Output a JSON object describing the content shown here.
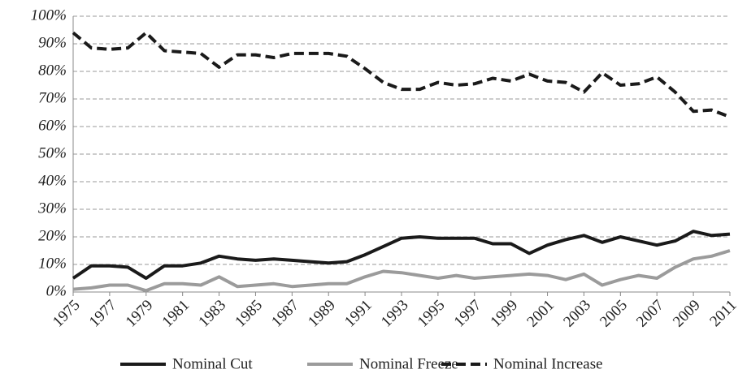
{
  "chart_data": {
    "type": "line",
    "x": [
      1975,
      1976,
      1977,
      1978,
      1979,
      1980,
      1981,
      1982,
      1983,
      1984,
      1985,
      1986,
      1987,
      1988,
      1989,
      1990,
      1991,
      1992,
      1993,
      1994,
      1995,
      1996,
      1997,
      1998,
      1999,
      2000,
      2001,
      2002,
      2003,
      2004,
      2005,
      2006,
      2007,
      2008,
      2009,
      2010,
      2011
    ],
    "series": [
      {
        "name": "Nominal Cut",
        "color": "#1a1a1a",
        "dashed": false,
        "values": [
          5,
          9.5,
          9.5,
          9,
          5,
          9.5,
          9.5,
          10.5,
          13,
          12,
          11.5,
          12,
          11.5,
          11,
          10.5,
          11,
          13.5,
          16.5,
          19.5,
          20,
          19.5,
          19.5,
          19.5,
          17.5,
          17.5,
          14,
          17,
          19,
          20.5,
          18,
          20,
          18.5,
          17,
          18.5,
          22,
          20.5,
          21
        ]
      },
      {
        "name": "Nominal Freeze",
        "color": "#9b9b9b",
        "dashed": false,
        "values": [
          1,
          1.5,
          2.5,
          2.5,
          0.5,
          3,
          3,
          2.5,
          5.5,
          2,
          2.5,
          3,
          2,
          2.5,
          3,
          3,
          5.5,
          7.5,
          7,
          6,
          5,
          6,
          5,
          5.5,
          6,
          6.5,
          6,
          4.5,
          6.5,
          2.5,
          4.5,
          6,
          5,
          9,
          12,
          13,
          15
        ]
      },
      {
        "name": "Nominal Increase",
        "color": "#1a1a1a",
        "dashed": true,
        "values": [
          94,
          88.5,
          88,
          88.5,
          94,
          87.5,
          87,
          86.5,
          81.5,
          86,
          86,
          85,
          86.5,
          86.5,
          86.5,
          85.5,
          81,
          76,
          73.5,
          73.5,
          76,
          75,
          75.5,
          77.5,
          76.5,
          79,
          76.5,
          76,
          72.5,
          79.5,
          75,
          75.5,
          78,
          72.5,
          65.5,
          66,
          63.5
        ]
      }
    ],
    "xlim": [
      1975,
      2011
    ],
    "xticks": [
      1975,
      1977,
      1979,
      1981,
      1983,
      1985,
      1987,
      1989,
      1991,
      1993,
      1995,
      1997,
      1999,
      2001,
      2003,
      2005,
      2007,
      2009,
      2011
    ],
    "ylim": [
      0,
      100
    ],
    "yticks": [
      {
        "value": 0,
        "label": "0%"
      },
      {
        "value": 10,
        "label": "10%"
      },
      {
        "value": 20,
        "label": "20%"
      },
      {
        "value": 30,
        "label": "30%"
      },
      {
        "value": 40,
        "label": "40%"
      },
      {
        "value": 50,
        "label": "50%"
      },
      {
        "value": 60,
        "label": "60%"
      },
      {
        "value": 70,
        "label": "70%"
      },
      {
        "value": 80,
        "label": "80%"
      },
      {
        "value": 90,
        "label": "90%"
      },
      {
        "value": 100,
        "label": "100%"
      }
    ],
    "grid": true
  }
}
